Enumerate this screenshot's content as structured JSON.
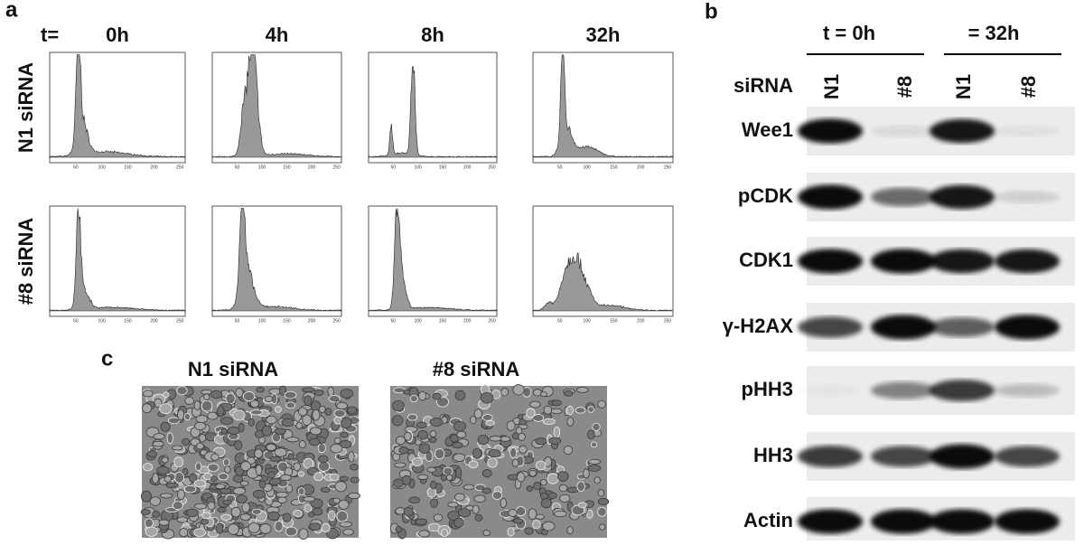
{
  "panel_a": {
    "label": "a",
    "time_prefix": "t=",
    "times": [
      "0h",
      "4h",
      "8h",
      "32h"
    ],
    "rows": [
      "N1 siRNA",
      "#8 siRNA"
    ],
    "axis_ticks": [
      50,
      100,
      150,
      200,
      250
    ]
  },
  "panel_b": {
    "label": "b",
    "groups": [
      "t  = 0h",
      "= 32h"
    ],
    "sirna_label": "siRNA",
    "lanes": [
      "N1",
      "#8",
      "N1",
      "#8"
    ],
    "proteins": [
      "Wee1",
      "pCDK",
      "CDK1",
      "γ-H2AX",
      "pHH3",
      "HH3",
      "Actin"
    ]
  },
  "panel_c": {
    "label": "c",
    "images": [
      "N1 siRNA",
      "#8 siRNA"
    ]
  }
}
